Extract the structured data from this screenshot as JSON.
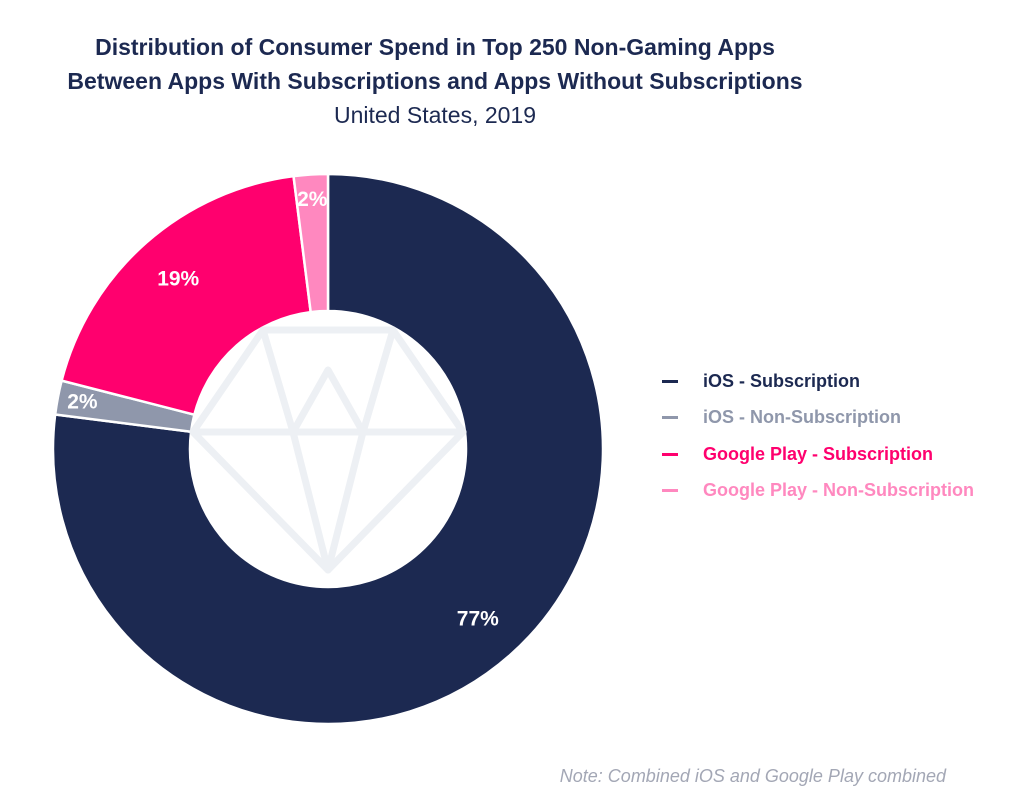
{
  "header": {
    "title_line1": "Distribution of Consumer Spend in Top 250 Non-Gaming Apps",
    "title_line2": "Between Apps With Subscriptions and Apps Without Subscriptions",
    "subtitle": "United States, 2019"
  },
  "note": "Note: Combined iOS and Google Play combined",
  "center_icon": "diamond-icon",
  "chart_data": {
    "type": "pie",
    "variant": "donut",
    "title": "Distribution of Consumer Spend in Top 250 Non-Gaming Apps Between Apps With Subscriptions and Apps Without Subscriptions",
    "subtitle": "United States, 2019",
    "slices": [
      {
        "name": "iOS - Subscription",
        "value": 77,
        "label": "77%",
        "color": "#1c2951"
      },
      {
        "name": "iOS - Non-Subscription",
        "value": 2,
        "label": "2%",
        "color": "#8f97ab"
      },
      {
        "name": "Google Play - Subscription",
        "value": 19,
        "label": "19%",
        "color": "#ff006e"
      },
      {
        "name": "Google Play - Non-Subscription",
        "value": 2,
        "label": "2%",
        "color": "#ff88bf"
      }
    ],
    "legend_position": "right"
  }
}
